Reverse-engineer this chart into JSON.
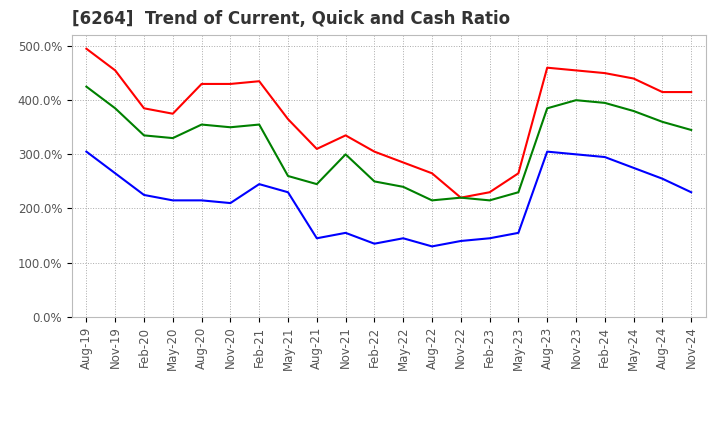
{
  "title": "[6264]  Trend of Current, Quick and Cash Ratio",
  "x_labels": [
    "Aug-19",
    "Nov-19",
    "Feb-20",
    "May-20",
    "Aug-20",
    "Nov-20",
    "Feb-21",
    "May-21",
    "Aug-21",
    "Nov-21",
    "Feb-22",
    "May-22",
    "Aug-22",
    "Nov-22",
    "Feb-23",
    "May-23",
    "Aug-23",
    "Nov-23",
    "Feb-24",
    "May-24",
    "Aug-24",
    "Nov-24"
  ],
  "current_ratio": [
    4.95,
    4.55,
    3.85,
    3.75,
    4.3,
    4.3,
    4.35,
    3.65,
    3.1,
    3.35,
    3.05,
    2.85,
    2.65,
    2.2,
    2.3,
    2.65,
    4.6,
    4.55,
    4.5,
    4.4,
    4.15,
    4.15
  ],
  "quick_ratio": [
    4.25,
    3.85,
    3.35,
    3.3,
    3.55,
    3.5,
    3.55,
    2.6,
    2.45,
    3.0,
    2.5,
    2.4,
    2.15,
    2.2,
    2.15,
    2.3,
    3.85,
    4.0,
    3.95,
    3.8,
    3.6,
    3.45
  ],
  "cash_ratio": [
    3.05,
    2.65,
    2.25,
    2.15,
    2.15,
    2.1,
    2.45,
    2.3,
    1.45,
    1.55,
    1.35,
    1.45,
    1.3,
    1.4,
    1.45,
    1.55,
    3.05,
    3.0,
    2.95,
    2.75,
    2.55,
    2.3
  ],
  "ylim": [
    0.0,
    5.2
  ],
  "yticks": [
    0.0,
    1.0,
    2.0,
    3.0,
    4.0,
    5.0
  ],
  "ytick_labels": [
    "0.0%",
    "100.0%",
    "200.0%",
    "300.0%",
    "400.0%",
    "500.0%"
  ],
  "line_colors": {
    "current": "#FF0000",
    "quick": "#008000",
    "cash": "#0000FF"
  },
  "background_color": "#FFFFFF",
  "grid_color": "#AAAAAA",
  "title_fontsize": 12,
  "legend_fontsize": 9,
  "tick_fontsize": 8.5,
  "linewidth": 1.5
}
